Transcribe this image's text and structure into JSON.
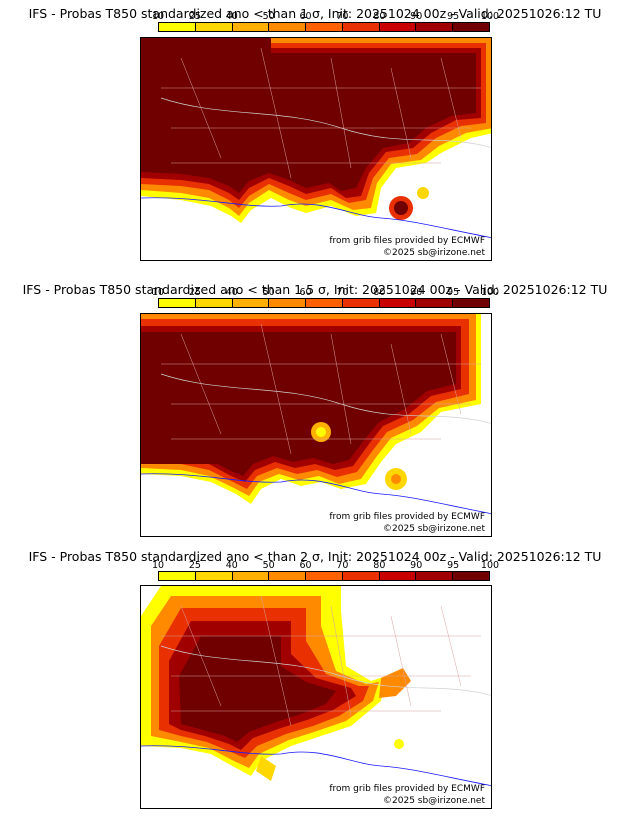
{
  "palette": {
    "levels": [
      "10",
      "25",
      "40",
      "50",
      "60",
      "70",
      "80",
      "90",
      "95",
      "100"
    ],
    "colors": [
      "#ffff00",
      "#ffd700",
      "#ffb000",
      "#ff8a00",
      "#ff6000",
      "#e83000",
      "#c80000",
      "#a00000",
      "#700000"
    ]
  },
  "panels": [
    {
      "title": "IFS - Probas T850  standardized ano < than 1 σ, Init: 20251024 00z - Valid: 20251026:12 TU",
      "credit_source": "from grib files provided by ECMWF",
      "credit_copyright": "©2025 sb@irizone.net"
    },
    {
      "title": "IFS - Probas T850  standardized ano < than 1.5 σ, Init: 20251024 00z - Valid: 20251026:12 TU",
      "credit_source": "from grib files provided by ECMWF",
      "credit_copyright": "©2025 sb@irizone.net"
    },
    {
      "title": "IFS - Probas T850  standardized ano < than 2 σ, Init: 20251024 00z - Valid: 20251026:12 TU",
      "credit_source": "from grib files provided by ECMWF",
      "credit_copyright": "©2025 sb@irizone.net"
    }
  ]
}
